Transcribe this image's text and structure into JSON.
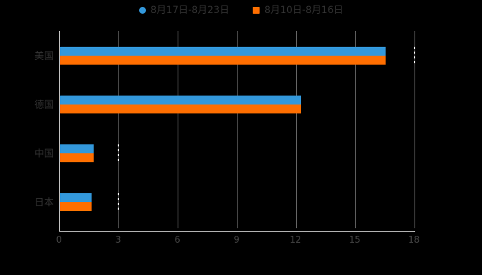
{
  "background": "#000000",
  "legend": {
    "position": "top-center",
    "items": [
      {
        "label": "8月17日-8月23日",
        "color": "#3398db",
        "marker": "circle"
      },
      {
        "label": "8月10日-8月16日",
        "color": "#ff6e00",
        "marker": "square"
      }
    ]
  },
  "chart_data": {
    "type": "bar",
    "orientation": "horizontal",
    "title": "",
    "xlabel": "",
    "ylabel": "",
    "categories": [
      "美国",
      "德国",
      "中国",
      "日本"
    ],
    "series": [
      {
        "name": "8月17日-8月23日",
        "color": "#3398db",
        "values": [
          16.5,
          12.2,
          1.7,
          1.6
        ]
      },
      {
        "name": "8月10日-8月16日",
        "color": "#ff6e00",
        "values": [
          16.5,
          12.2,
          1.7,
          1.6
        ]
      }
    ],
    "x_ticks": [
      "0",
      "3",
      "6",
      "9",
      "12",
      "15",
      "18"
    ],
    "x_tick_values": [
      0,
      3,
      6,
      9,
      12,
      15,
      18
    ],
    "xlim": [
      0,
      18
    ],
    "grid": true,
    "legend_position": "top",
    "dashed_value_markers": [
      {
        "category": "美国",
        "value": 18
      },
      {
        "category": "中国",
        "value": 3
      },
      {
        "category": "日本",
        "value": 3
      }
    ]
  },
  "colors": {
    "axis_line": "#c9c9c9",
    "gridline": "#6a6a6a",
    "label_text": "#333333",
    "tick_text": "#474747"
  }
}
